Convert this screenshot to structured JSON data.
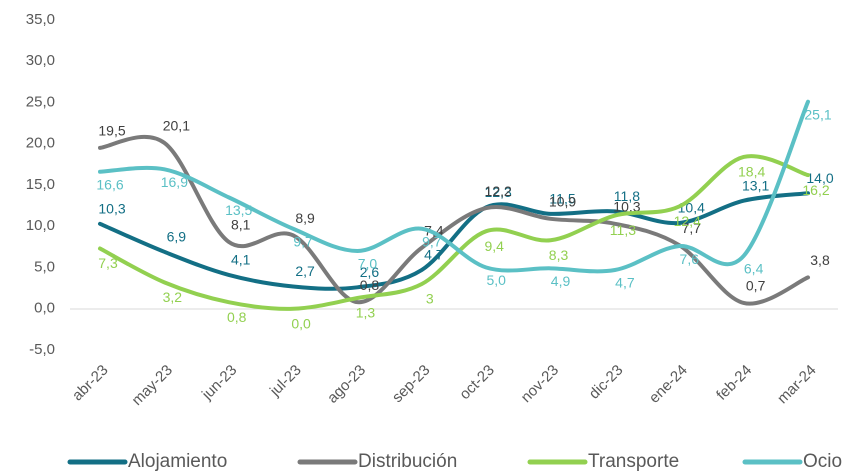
{
  "chart_data": {
    "type": "line",
    "categories": [
      "abr-23",
      "may-23",
      "jun-23",
      "jul-23",
      "ago-23",
      "sep-23",
      "oct-23",
      "nov-23",
      "dic-23",
      "ene-24",
      "feb-24",
      "mar-24"
    ],
    "ylim": [
      -5,
      35
    ],
    "yticks": [
      {
        "value": -5,
        "label": "-5,0"
      },
      {
        "value": 0,
        "label": "0,0"
      },
      {
        "value": 5,
        "label": "5,0"
      },
      {
        "value": 10,
        "label": "10,0"
      },
      {
        "value": 15,
        "label": "15,0"
      },
      {
        "value": 20,
        "label": "20,0"
      },
      {
        "value": 25,
        "label": "25,0"
      },
      {
        "value": 30,
        "label": "30,0"
      },
      {
        "value": 35,
        "label": "35,0"
      }
    ],
    "legend": "bottom",
    "series": [
      {
        "name": "Alojamiento",
        "color": "#136f85",
        "values": [
          10.3,
          6.9,
          4.1,
          2.7,
          2.6,
          4.7,
          12.3,
          11.5,
          11.8,
          10.4,
          13.1,
          14.0
        ],
        "value_labels": [
          "10,3",
          "6,9",
          "4,1",
          "2,7",
          "2,6",
          "4,7",
          "12,3",
          "11,5",
          "11,8",
          "10,4",
          "13,1",
          "14,0"
        ]
      },
      {
        "name": "Distribución",
        "color": "#7a7a7a",
        "values": [
          19.5,
          20.1,
          8.1,
          8.9,
          0.8,
          7.4,
          12.2,
          10.9,
          10.3,
          7.7,
          0.7,
          3.8
        ],
        "value_labels": [
          "19,5",
          "20,1",
          "8,1",
          "8,9",
          "0,8",
          "7,4",
          "12,2",
          "10,9",
          "10,3",
          "7,7",
          "0,7",
          "3,8"
        ]
      },
      {
        "name": "Transporte",
        "color": "#92d050",
        "values": [
          7.3,
          3.2,
          0.8,
          0.0,
          1.3,
          3,
          9.4,
          8.3,
          11.3,
          12.4,
          18.4,
          16.2
        ],
        "value_labels": [
          "7,3",
          "3,2",
          "0,8",
          "0,0",
          "1,3",
          "3",
          "9,4",
          "8,3",
          "11,3",
          "12,4",
          "18,4",
          "16,2"
        ]
      },
      {
        "name": "Ocio",
        "color": "#5bc0c5",
        "values": [
          16.6,
          16.9,
          13.5,
          9.7,
          7.0,
          9.7,
          5.0,
          4.9,
          4.7,
          7.6,
          6.4,
          25.1
        ],
        "value_labels": [
          "16,6",
          "16,9",
          "13,5",
          "9,7",
          "7,0",
          "9,7",
          "5,0",
          "4,9",
          "4,7",
          "7,6",
          "6,4",
          "25,1"
        ]
      }
    ]
  }
}
